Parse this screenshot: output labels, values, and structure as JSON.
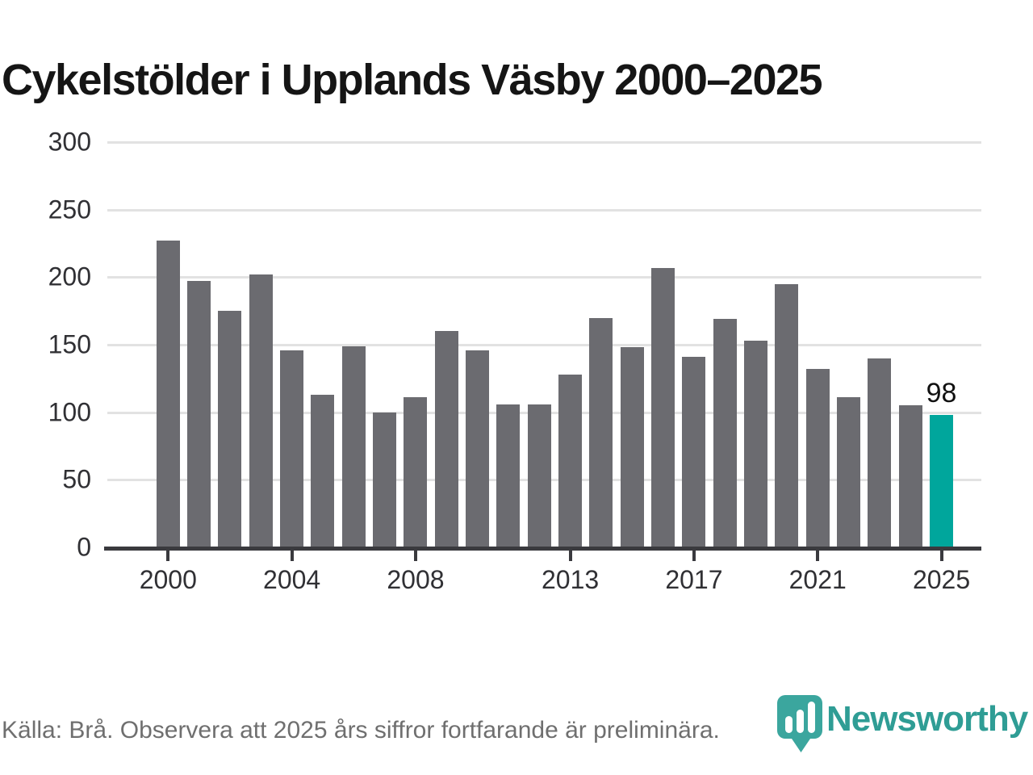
{
  "title": "Cykelstölder i Upplands Väsby 2000–2025",
  "chart_data": {
    "type": "bar",
    "x": [
      2000,
      2001,
      2002,
      2003,
      2004,
      2005,
      2006,
      2007,
      2008,
      2009,
      2010,
      2011,
      2012,
      2013,
      2014,
      2015,
      2016,
      2017,
      2018,
      2019,
      2020,
      2021,
      2022,
      2023,
      2024,
      2025
    ],
    "values": [
      227,
      197,
      175,
      202,
      146,
      113,
      149,
      100,
      111,
      160,
      146,
      106,
      106,
      128,
      170,
      148,
      207,
      141,
      169,
      153,
      195,
      132,
      111,
      140,
      105,
      98
    ],
    "title": "Cykelstölder i Upplands Väsby 2000–2025",
    "xlabel": "",
    "ylabel": "",
    "ylim": [
      0,
      300
    ],
    "yticks": [
      300,
      250,
      200,
      150,
      100,
      50,
      0
    ],
    "xticks": [
      2000,
      2004,
      2008,
      2013,
      2017,
      2021,
      2025
    ],
    "grid": true,
    "legend_position": "none",
    "bar_color": "#6b6b70",
    "highlight": {
      "year": 2025,
      "color": "#00a69c",
      "value_label": "98"
    }
  },
  "footer": {
    "source_text": "Källa: Brå. Observera att 2025 års siffror fortfarande är preliminära."
  },
  "logo": {
    "text": "Newsworthy",
    "text_color": "#2f9d95",
    "icon": "newsworthy-pin-barchart-icon",
    "icon_color": "#3ba69e"
  }
}
